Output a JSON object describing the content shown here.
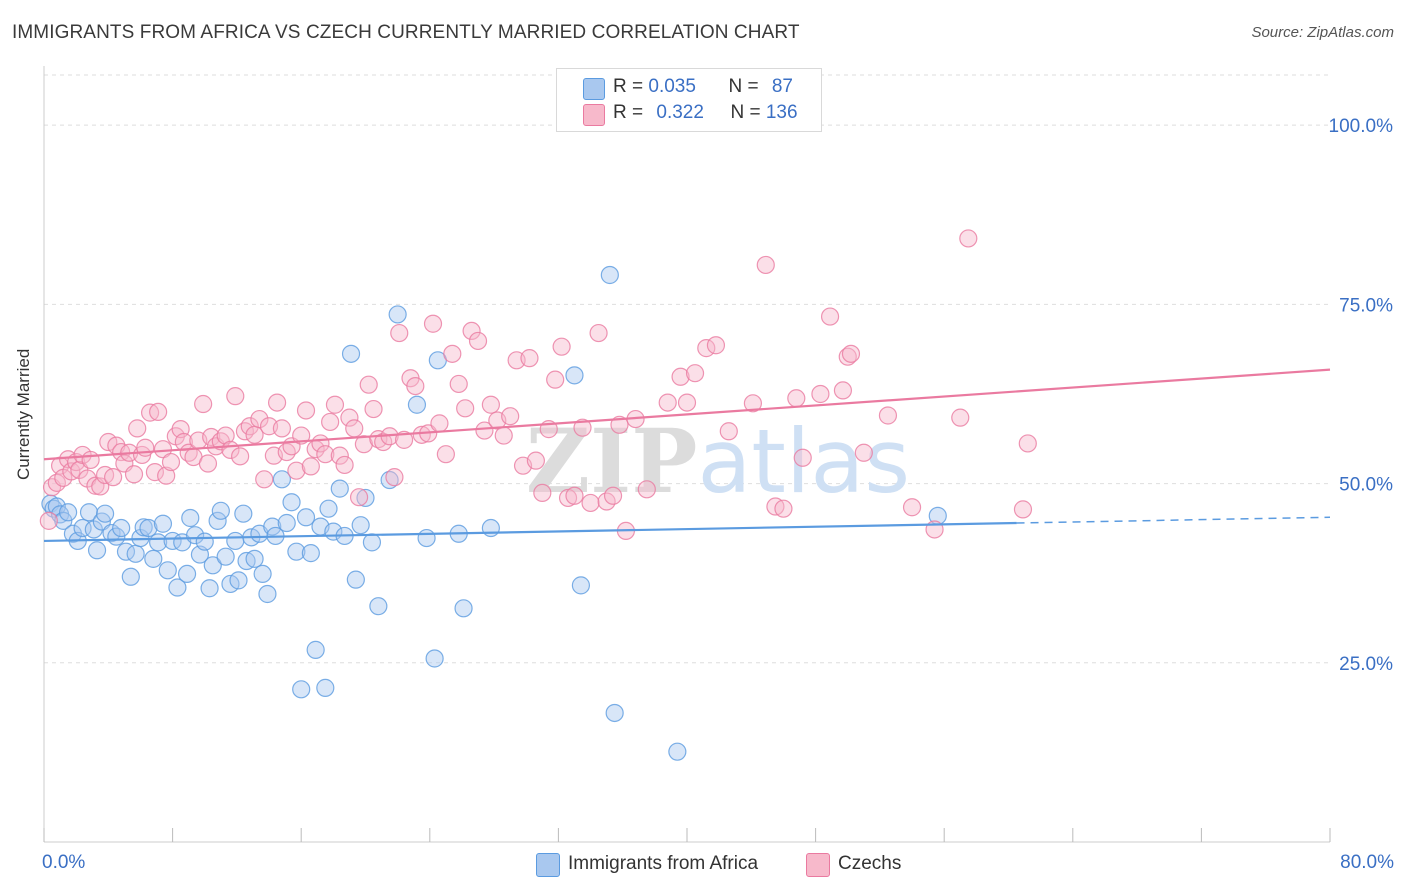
{
  "header": {
    "title": "IMMIGRANTS FROM AFRICA VS CZECH CURRENTLY MARRIED CORRELATION CHART",
    "source": "Source: ZipAtlas.com"
  },
  "legend_top": {
    "rows": [
      {
        "r_label": "R = ",
        "r_value": "0.035",
        "n_label": "N = ",
        "n_value": "87",
        "color": "#a9c8ef"
      },
      {
        "r_label": "R = ",
        "r_value": "0.322",
        "n_label": "N = ",
        "n_value": "136",
        "color": "#f7b9cb"
      }
    ]
  },
  "legend_bottom": {
    "items": [
      {
        "label": "Immigrants from Africa",
        "color": "#a9c8ef"
      },
      {
        "label": "Czechs",
        "color": "#f7b9cb"
      }
    ]
  },
  "watermark": {
    "zip": "ZIP",
    "atlas": "atlas"
  },
  "chart_data": {
    "type": "scatter",
    "title": "IMMIGRANTS FROM AFRICA VS CZECH CURRENTLY MARRIED CORRELATION CHART",
    "ylabel": "Currently Married",
    "xlabel": "",
    "xlim": [
      0,
      80
    ],
    "ylim": [
      0,
      107
    ],
    "x_tick_labels": [
      "0.0%",
      "80.0%"
    ],
    "y_ticks": [
      25,
      50,
      75,
      100
    ],
    "y_tick_labels": [
      "25.0%",
      "50.0%",
      "75.0%",
      "100.0%"
    ],
    "grid": true,
    "legend_position": "top-center",
    "series": [
      {
        "name": "Immigrants from Africa",
        "color": "#5b9be0",
        "fill": "#a9c8ef",
        "r": 0.035,
        "n": 87,
        "trend": {
          "x": [
            0,
            60.5
          ],
          "y": [
            42.0,
            44.5
          ],
          "dashed_to": [
            80,
            45.3
          ]
        },
        "points": [
          [
            0.4,
            47.2
          ],
          [
            0.6,
            46.5
          ],
          [
            0.8,
            46.8
          ],
          [
            1.0,
            45.7
          ],
          [
            1.2,
            44.8
          ],
          [
            1.5,
            46.0
          ],
          [
            1.8,
            43.0
          ],
          [
            2.1,
            42.0
          ],
          [
            2.4,
            43.8
          ],
          [
            2.8,
            46.0
          ],
          [
            3.1,
            43.6
          ],
          [
            3.3,
            40.7
          ],
          [
            3.6,
            44.7
          ],
          [
            3.8,
            45.8
          ],
          [
            4.2,
            43.1
          ],
          [
            4.5,
            42.6
          ],
          [
            4.8,
            43.8
          ],
          [
            5.1,
            40.5
          ],
          [
            5.4,
            37.0
          ],
          [
            5.7,
            40.2
          ],
          [
            6.0,
            42.4
          ],
          [
            6.2,
            43.9
          ],
          [
            6.5,
            43.8
          ],
          [
            6.8,
            39.5
          ],
          [
            7.1,
            41.8
          ],
          [
            7.4,
            44.4
          ],
          [
            7.7,
            37.9
          ],
          [
            8.0,
            42.0
          ],
          [
            8.3,
            35.5
          ],
          [
            8.6,
            41.8
          ],
          [
            8.9,
            37.4
          ],
          [
            9.1,
            45.2
          ],
          [
            9.4,
            42.8
          ],
          [
            9.7,
            40.1
          ],
          [
            10.0,
            41.9
          ],
          [
            10.3,
            35.4
          ],
          [
            10.5,
            38.6
          ],
          [
            10.8,
            44.8
          ],
          [
            11.0,
            46.2
          ],
          [
            11.3,
            39.8
          ],
          [
            11.6,
            36.0
          ],
          [
            11.9,
            42.0
          ],
          [
            12.1,
            36.5
          ],
          [
            12.4,
            45.8
          ],
          [
            12.6,
            39.2
          ],
          [
            12.9,
            42.5
          ],
          [
            13.1,
            39.5
          ],
          [
            13.4,
            43.0
          ],
          [
            13.6,
            37.4
          ],
          [
            13.9,
            34.6
          ],
          [
            14.2,
            44.0
          ],
          [
            14.4,
            42.7
          ],
          [
            14.8,
            50.6
          ],
          [
            15.1,
            44.5
          ],
          [
            15.4,
            47.4
          ],
          [
            15.7,
            40.5
          ],
          [
            16.0,
            21.3
          ],
          [
            16.3,
            45.3
          ],
          [
            16.6,
            40.3
          ],
          [
            16.9,
            26.8
          ],
          [
            17.2,
            44.0
          ],
          [
            17.5,
            21.5
          ],
          [
            17.7,
            46.5
          ],
          [
            18.0,
            43.3
          ],
          [
            18.4,
            49.3
          ],
          [
            18.7,
            42.7
          ],
          [
            19.1,
            68.1
          ],
          [
            19.4,
            36.6
          ],
          [
            19.7,
            44.2
          ],
          [
            20.0,
            48.0
          ],
          [
            20.4,
            41.8
          ],
          [
            20.8,
            32.9
          ],
          [
            21.5,
            50.5
          ],
          [
            22.0,
            73.6
          ],
          [
            23.2,
            61.0
          ],
          [
            23.8,
            42.4
          ],
          [
            24.3,
            25.6
          ],
          [
            24.5,
            67.2
          ],
          [
            25.8,
            43.0
          ],
          [
            26.1,
            32.6
          ],
          [
            27.8,
            43.8
          ],
          [
            33.0,
            65.1
          ],
          [
            33.4,
            35.8
          ],
          [
            35.2,
            79.1
          ],
          [
            35.5,
            18.0
          ],
          [
            39.4,
            12.6
          ],
          [
            55.6,
            45.5
          ]
        ]
      },
      {
        "name": "Czechs",
        "color": "#ea7aa0",
        "fill": "#f7b9cb",
        "r": 0.322,
        "n": 136,
        "trend": {
          "x": [
            0,
            80
          ],
          "y": [
            53.4,
            65.9
          ]
        },
        "points": [
          [
            0.3,
            44.8
          ],
          [
            0.5,
            49.5
          ],
          [
            0.8,
            50.1
          ],
          [
            1.0,
            52.5
          ],
          [
            1.2,
            50.8
          ],
          [
            1.5,
            53.4
          ],
          [
            1.7,
            51.7
          ],
          [
            2.0,
            53.0
          ],
          [
            2.2,
            51.9
          ],
          [
            2.4,
            54.0
          ],
          [
            2.7,
            50.7
          ],
          [
            2.9,
            53.3
          ],
          [
            3.2,
            49.7
          ],
          [
            3.5,
            49.6
          ],
          [
            3.8,
            51.2
          ],
          [
            4.0,
            55.8
          ],
          [
            4.3,
            50.9
          ],
          [
            4.5,
            55.3
          ],
          [
            4.8,
            54.4
          ],
          [
            5.0,
            52.8
          ],
          [
            5.3,
            54.3
          ],
          [
            5.6,
            51.3
          ],
          [
            5.8,
            57.7
          ],
          [
            6.1,
            54.0
          ],
          [
            6.3,
            55.0
          ],
          [
            6.6,
            59.9
          ],
          [
            6.9,
            51.6
          ],
          [
            7.1,
            60.0
          ],
          [
            7.4,
            54.8
          ],
          [
            7.6,
            51.1
          ],
          [
            7.9,
            53.0
          ],
          [
            8.2,
            56.6
          ],
          [
            8.5,
            57.6
          ],
          [
            8.7,
            55.8
          ],
          [
            9.0,
            54.3
          ],
          [
            9.3,
            53.7
          ],
          [
            9.6,
            56.0
          ],
          [
            9.9,
            61.1
          ],
          [
            10.2,
            52.8
          ],
          [
            10.4,
            56.5
          ],
          [
            10.7,
            55.2
          ],
          [
            11.0,
            55.9
          ],
          [
            11.3,
            56.7
          ],
          [
            11.6,
            54.7
          ],
          [
            11.9,
            62.2
          ],
          [
            12.2,
            53.8
          ],
          [
            12.5,
            57.3
          ],
          [
            12.8,
            58.0
          ],
          [
            13.1,
            56.8
          ],
          [
            13.4,
            59.0
          ],
          [
            13.7,
            50.6
          ],
          [
            14.0,
            58.0
          ],
          [
            14.3,
            53.9
          ],
          [
            14.5,
            61.3
          ],
          [
            14.8,
            57.7
          ],
          [
            15.1,
            54.4
          ],
          [
            15.4,
            55.2
          ],
          [
            15.7,
            51.8
          ],
          [
            16.0,
            56.7
          ],
          [
            16.3,
            60.2
          ],
          [
            16.6,
            52.4
          ],
          [
            16.9,
            54.8
          ],
          [
            17.2,
            55.6
          ],
          [
            17.5,
            54.1
          ],
          [
            17.8,
            58.6
          ],
          [
            18.1,
            61.0
          ],
          [
            18.4,
            53.9
          ],
          [
            18.7,
            52.6
          ],
          [
            19.0,
            59.2
          ],
          [
            19.3,
            57.7
          ],
          [
            19.6,
            48.1
          ],
          [
            19.9,
            55.5
          ],
          [
            20.2,
            63.8
          ],
          [
            20.5,
            60.4
          ],
          [
            20.8,
            56.2
          ],
          [
            21.1,
            55.8
          ],
          [
            21.5,
            56.6
          ],
          [
            21.8,
            50.9
          ],
          [
            22.1,
            71.0
          ],
          [
            22.4,
            56.1
          ],
          [
            22.8,
            64.7
          ],
          [
            23.1,
            63.6
          ],
          [
            23.5,
            56.8
          ],
          [
            23.9,
            57.0
          ],
          [
            24.2,
            72.3
          ],
          [
            24.6,
            58.4
          ],
          [
            25.0,
            54.1
          ],
          [
            25.4,
            68.1
          ],
          [
            25.8,
            63.9
          ],
          [
            26.2,
            60.5
          ],
          [
            26.6,
            71.3
          ],
          [
            27.0,
            69.9
          ],
          [
            27.4,
            57.4
          ],
          [
            27.8,
            61.0
          ],
          [
            28.2,
            58.8
          ],
          [
            28.6,
            56.7
          ],
          [
            29.0,
            59.4
          ],
          [
            29.4,
            67.2
          ],
          [
            29.8,
            52.5
          ],
          [
            30.2,
            67.5
          ],
          [
            30.6,
            53.2
          ],
          [
            31.0,
            48.7
          ],
          [
            31.4,
            57.6
          ],
          [
            31.8,
            64.5
          ],
          [
            32.2,
            69.1
          ],
          [
            32.6,
            48.0
          ],
          [
            33.0,
            48.3
          ],
          [
            33.5,
            57.8
          ],
          [
            34.0,
            47.3
          ],
          [
            34.5,
            71.0
          ],
          [
            35.0,
            47.5
          ],
          [
            35.4,
            48.3
          ],
          [
            35.8,
            58.2
          ],
          [
            36.2,
            43.4
          ],
          [
            36.8,
            59.0
          ],
          [
            37.5,
            49.2
          ],
          [
            38.8,
            61.3
          ],
          [
            39.6,
            64.9
          ],
          [
            40.0,
            61.3
          ],
          [
            40.5,
            65.4
          ],
          [
            41.2,
            68.9
          ],
          [
            41.8,
            69.3
          ],
          [
            42.6,
            57.3
          ],
          [
            44.1,
            61.2
          ],
          [
            44.9,
            80.5
          ],
          [
            45.5,
            46.8
          ],
          [
            46.0,
            46.5
          ],
          [
            46.8,
            61.9
          ],
          [
            47.2,
            53.6
          ],
          [
            48.3,
            62.5
          ],
          [
            48.9,
            73.3
          ],
          [
            49.7,
            63.0
          ],
          [
            50.0,
            67.7
          ],
          [
            50.2,
            68.1
          ],
          [
            51.0,
            54.3
          ],
          [
            52.5,
            59.5
          ],
          [
            54.0,
            46.7
          ],
          [
            55.4,
            43.6
          ],
          [
            57.0,
            59.2
          ],
          [
            57.5,
            84.2
          ],
          [
            60.9,
            46.4
          ],
          [
            61.2,
            55.6
          ]
        ]
      }
    ]
  }
}
